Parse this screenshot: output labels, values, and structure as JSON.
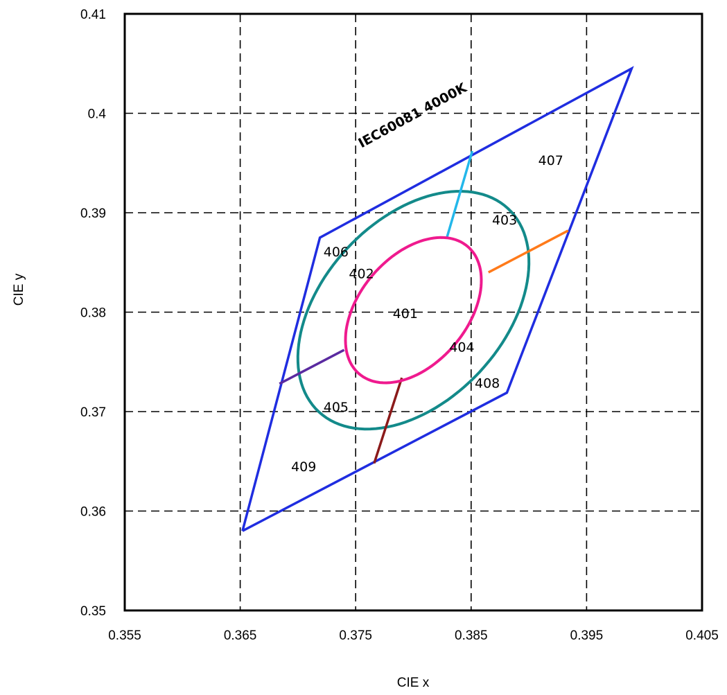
{
  "chart_data": {
    "type": "scatter",
    "title": "",
    "xlabel": "CIE x",
    "ylabel": "CIE y",
    "xlim": [
      0.355,
      0.405
    ],
    "ylim": [
      0.35,
      0.41
    ],
    "xticks": [
      "0.355",
      "0.365",
      "0.375",
      "0.385",
      "0.395",
      "0.405"
    ],
    "yticks": [
      "0.35",
      "0.36",
      "0.37",
      "0.38",
      "0.39",
      "0.4",
      "0.41"
    ],
    "grid": true,
    "grid_style": "dashed",
    "band_label": "IEC60081 4000K",
    "colors": {
      "boundary": "#1f2de0",
      "outer_ellipse": "#138a8a",
      "inner_ellipse": "#ef1a8e",
      "seg_top": "#23b7ea",
      "seg_right": "#ff7a1a",
      "seg_left": "#5a2aa0",
      "seg_bottom": "#8b1a1a",
      "grid": "#000000"
    },
    "boundary_polygon": [
      [
        0.3652,
        0.358
      ],
      [
        0.3719,
        0.3875
      ],
      [
        0.3989,
        0.4045
      ],
      [
        0.3881,
        0.3719
      ],
      [
        0.3652,
        0.358
      ]
    ],
    "outer_ellipse": {
      "cx": 0.38,
      "cy": 0.3802,
      "a": 0.0132,
      "b": 0.0083,
      "angle_deg": 57
    },
    "inner_ellipse": {
      "cx": 0.38,
      "cy": 0.3802,
      "a": 0.008,
      "b": 0.0049,
      "angle_deg": 59
    },
    "segments": [
      {
        "name": "top",
        "points": [
          [
            0.3829,
            0.3875
          ],
          [
            0.3851,
            0.3962
          ]
        ]
      },
      {
        "name": "right",
        "points": [
          [
            0.3865,
            0.384
          ],
          [
            0.3934,
            0.3882
          ]
        ]
      },
      {
        "name": "left",
        "points": [
          [
            0.374,
            0.3762
          ],
          [
            0.3684,
            0.3728
          ]
        ]
      },
      {
        "name": "bottom",
        "points": [
          [
            0.379,
            0.3734
          ],
          [
            0.3766,
            0.3648
          ]
        ]
      }
    ],
    "region_labels": [
      {
        "text": "401",
        "x": 0.3793,
        "y": 0.3799
      },
      {
        "text": "402",
        "x": 0.3755,
        "y": 0.3839
      },
      {
        "text": "403",
        "x": 0.3879,
        "y": 0.3893
      },
      {
        "text": "404",
        "x": 0.3842,
        "y": 0.3765
      },
      {
        "text": "405",
        "x": 0.3733,
        "y": 0.3705
      },
      {
        "text": "406",
        "x": 0.3733,
        "y": 0.3861
      },
      {
        "text": "407",
        "x": 0.3919,
        "y": 0.3953
      },
      {
        "text": "408",
        "x": 0.3864,
        "y": 0.3729
      },
      {
        "text": "409",
        "x": 0.3705,
        "y": 0.3645
      }
    ],
    "band_label_anchor": [
      0.3755,
      0.3965
    ]
  }
}
